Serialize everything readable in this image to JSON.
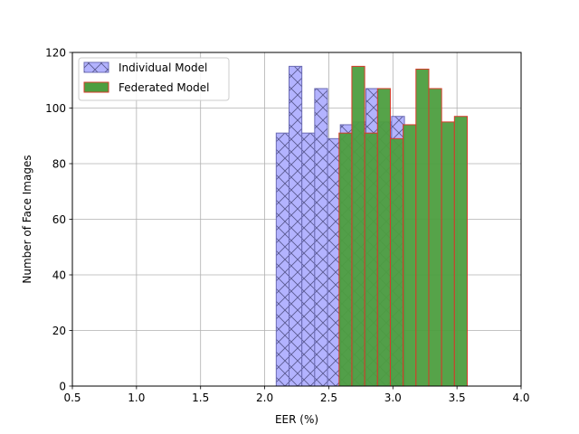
{
  "chart_data": {
    "type": "histogram",
    "xlabel": "EER (%)",
    "ylabel": "Number of Face Images",
    "xlim": [
      0.5,
      4.0
    ],
    "ylim": [
      0,
      120
    ],
    "xticks": [
      "0.5",
      "1.0",
      "1.5",
      "2.0",
      "2.5",
      "3.0",
      "3.5",
      "4.0"
    ],
    "yticks": [
      "0",
      "20",
      "40",
      "60",
      "80",
      "100",
      "120"
    ],
    "grid": true,
    "legend_position": "top-left",
    "series": [
      {
        "name": "Individual Model",
        "fill": "#b3b3ff",
        "edge": "#6b6bb3",
        "hatch": "x",
        "bin_start": 2.09,
        "bin_width": 0.1,
        "values": [
          91,
          115,
          91,
          107,
          89,
          94,
          95,
          107,
          95,
          97
        ]
      },
      {
        "name": "Federated Model",
        "fill": "#4d9e3f",
        "edge": "#d63a2a",
        "hatch": "",
        "bin_start": 2.58,
        "bin_width": 0.1,
        "values": [
          91,
          115,
          91,
          107,
          89,
          94,
          114,
          107,
          95,
          97
        ]
      }
    ]
  }
}
